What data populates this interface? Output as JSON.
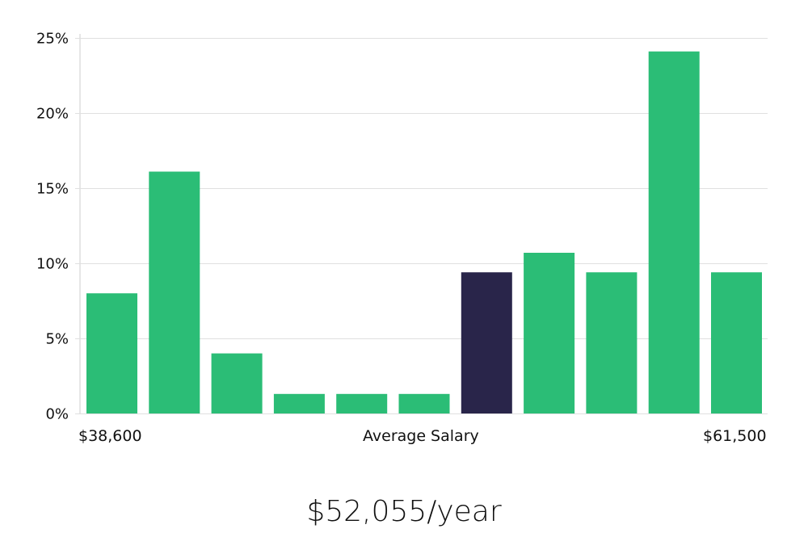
{
  "chart_data": {
    "type": "bar",
    "title": "",
    "xlabel": "Average Salary",
    "ylabel": "",
    "x_range_labels": {
      "min": "$38,600",
      "max": "$61,500"
    },
    "y_ticks": [
      "0%",
      "5%",
      "10%",
      "15%",
      "20%",
      "25%"
    ],
    "ylim": [
      0,
      25
    ],
    "grid": true,
    "values": [
      8.0,
      16.1,
      4.0,
      1.3,
      1.3,
      1.3,
      9.4,
      10.7,
      9.4,
      24.1,
      9.4
    ],
    "highlight_index": 6,
    "colors": {
      "bar": "#2bbd76",
      "highlight": "#29254a",
      "grid": "#e0e0e0",
      "axis": "#cccccc"
    },
    "headline": "$52,055/year"
  }
}
